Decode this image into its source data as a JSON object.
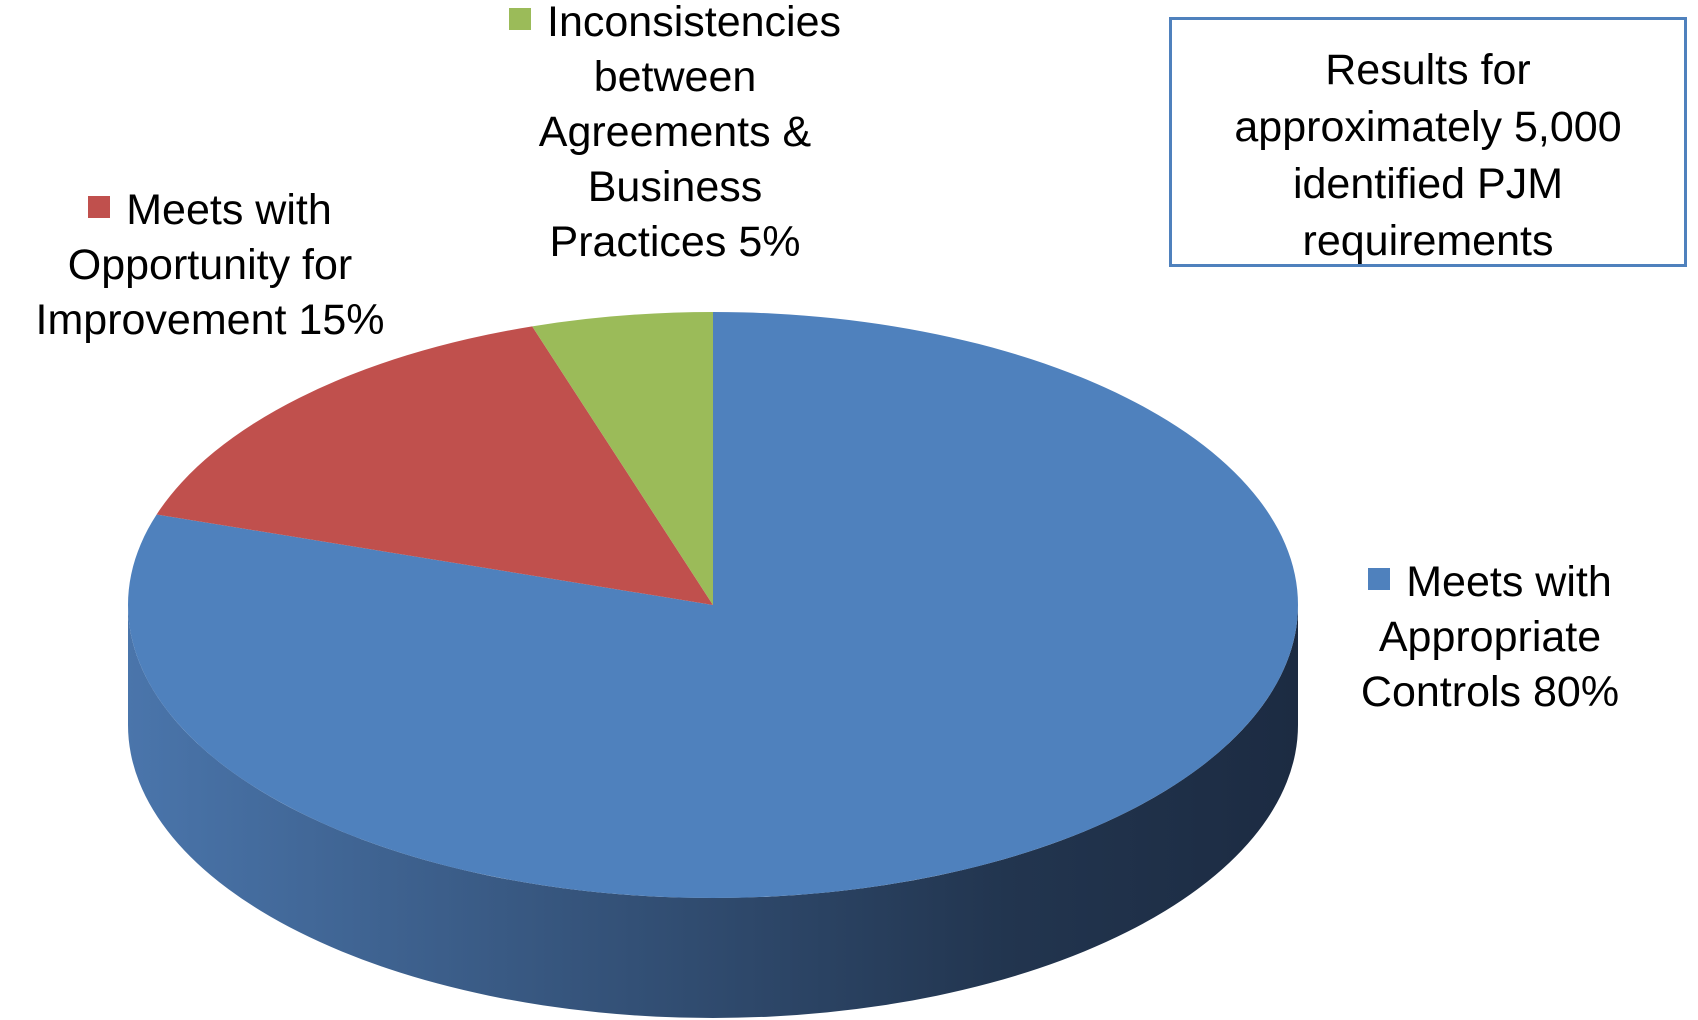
{
  "chart_data": {
    "type": "pie",
    "style": "3d",
    "categories": [
      "Meets with Appropriate Controls",
      "Meets with Opportunity for Improvement",
      "Inconsistencies between Agreements & Business Practices"
    ],
    "values": [
      80,
      15,
      5
    ],
    "value_labels": [
      "80%",
      "15%",
      "5%"
    ],
    "colors": [
      "#4f81bd",
      "#c0504d",
      "#9bbb59"
    ],
    "annotation": "Results for approximately 5,000 identified PJM requirements"
  }
}
